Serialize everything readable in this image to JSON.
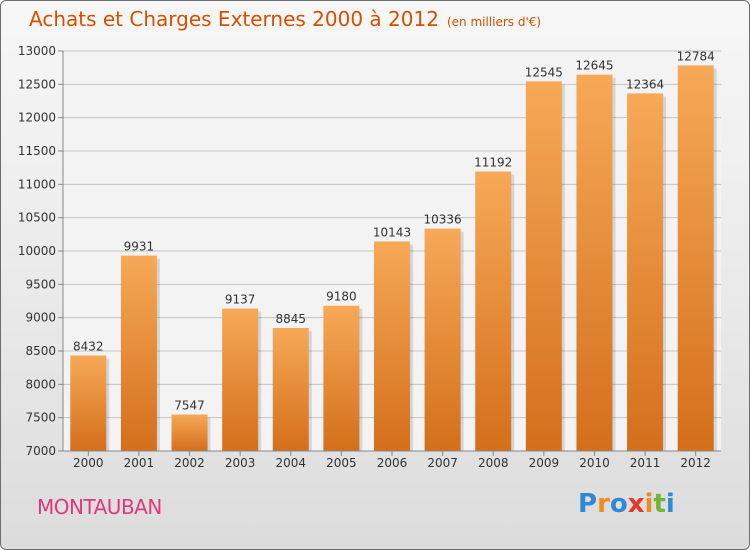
{
  "header": {
    "title": "Achats et Charges Externes 2000 à 2012",
    "subtitle": "(en milliers d'€)"
  },
  "footer": {
    "city": "MONTAUBAN",
    "logo": "Proxiti"
  },
  "colors": {
    "title": "#d94f00",
    "city": "#e0397a",
    "bar_light": "#f6a957",
    "bar_dark": "#d46f1b"
  },
  "chart_data": {
    "type": "bar",
    "title": "Achats et Charges Externes 2000 à 2012",
    "subtitle": "(en milliers d'€)",
    "categories": [
      "2000",
      "2001",
      "2002",
      "2003",
      "2004",
      "2005",
      "2006",
      "2007",
      "2008",
      "2009",
      "2010",
      "2011",
      "2012"
    ],
    "values": [
      8432,
      9931,
      7547,
      9137,
      8845,
      9180,
      10143,
      10336,
      11192,
      12545,
      12645,
      12364,
      12784
    ],
    "ylim": [
      7000,
      13000
    ],
    "yticks": [
      7000,
      7500,
      8000,
      8500,
      9000,
      9500,
      10000,
      10500,
      11000,
      11500,
      12000,
      12500,
      13000
    ],
    "grid": true,
    "legend": "none",
    "data_labels": true
  }
}
